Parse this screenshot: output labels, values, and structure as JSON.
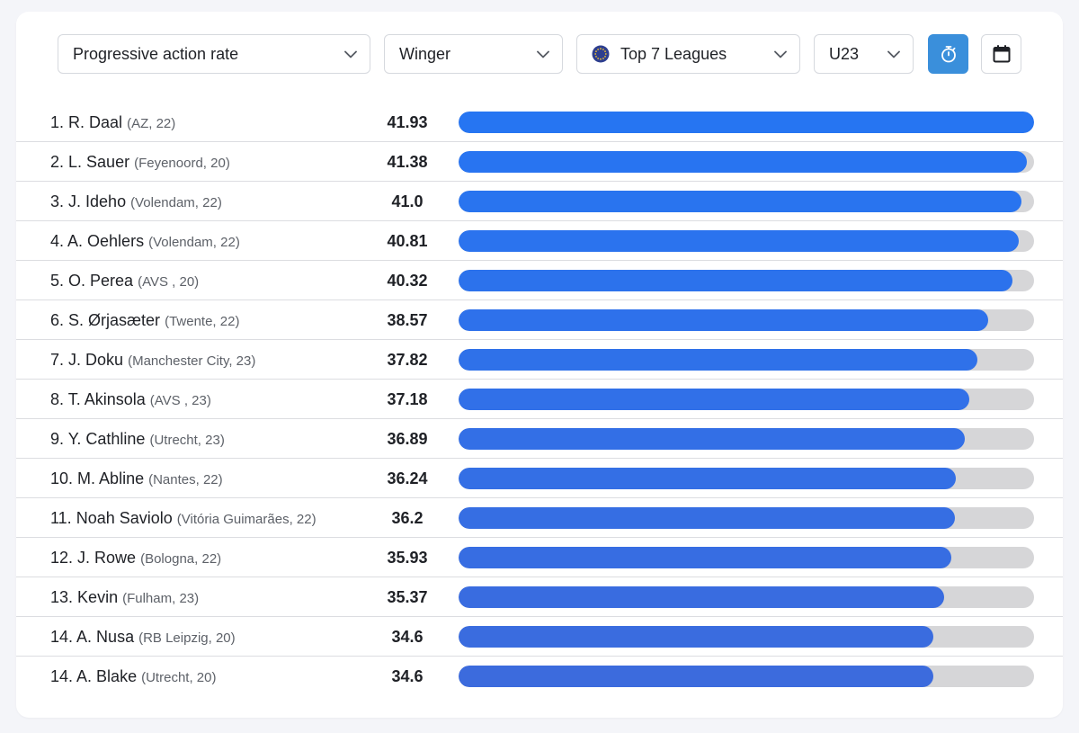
{
  "filters": {
    "metric": {
      "label": "Progressive action rate"
    },
    "position": {
      "label": "Winger"
    },
    "competition": {
      "label": "Top 7 Leagues"
    },
    "age": {
      "label": "U23"
    }
  },
  "buttons": {
    "timer": {
      "icon": "stopwatch-icon",
      "active": true
    },
    "calendar": {
      "icon": "calendar-icon",
      "active": false
    }
  },
  "colors": {
    "accent": "#3a8fdb",
    "bar_fill_top": "#2675f2",
    "bar_fill_bottom": "#3c6bdd",
    "bar_track": "#d6d6d8"
  },
  "scale_max": 41.93,
  "rankings": [
    {
      "rank": "1.",
      "name": "R. Daal",
      "club": "(AZ, 22)",
      "value": "41.93",
      "bar_pct": 100
    },
    {
      "rank": "2.",
      "name": "L. Sauer",
      "club": "(Feyenoord, 20)",
      "value": "41.38",
      "bar_pct": 98.7
    },
    {
      "rank": "3.",
      "name": "J. Ideho",
      "club": "(Volendam, 22)",
      "value": "41.0",
      "bar_pct": 97.8
    },
    {
      "rank": "4.",
      "name": "A. Oehlers",
      "club": "(Volendam, 22)",
      "value": "40.81",
      "bar_pct": 97.3
    },
    {
      "rank": "5.",
      "name": "O. Perea",
      "club": "(AVS , 20)",
      "value": "40.32",
      "bar_pct": 96.2
    },
    {
      "rank": "6.",
      "name": "S. Ørjasæter",
      "club": "(Twente, 22)",
      "value": "38.57",
      "bar_pct": 92.0
    },
    {
      "rank": "7.",
      "name": "J. Doku",
      "club": "(Manchester City, 23)",
      "value": "37.82",
      "bar_pct": 90.2
    },
    {
      "rank": "8.",
      "name": "T. Akinsola",
      "club": "(AVS , 23)",
      "value": "37.18",
      "bar_pct": 88.7
    },
    {
      "rank": "9.",
      "name": "Y. Cathline",
      "club": "(Utrecht, 23)",
      "value": "36.89",
      "bar_pct": 88.0
    },
    {
      "rank": "10.",
      "name": "M. Abline",
      "club": "(Nantes, 22)",
      "value": "36.24",
      "bar_pct": 86.4
    },
    {
      "rank": "11.",
      "name": "Noah Saviolo",
      "club": "(Vitória Guimarães, 22)",
      "value": "36.2",
      "bar_pct": 86.3
    },
    {
      "rank": "12.",
      "name": "J. Rowe",
      "club": "(Bologna, 22)",
      "value": "35.93",
      "bar_pct": 85.7
    },
    {
      "rank": "13.",
      "name": "Kevin",
      "club": "(Fulham, 23)",
      "value": "35.37",
      "bar_pct": 84.4
    },
    {
      "rank": "14.",
      "name": "A. Nusa",
      "club": "(RB Leipzig, 20)",
      "value": "34.6",
      "bar_pct": 82.5
    },
    {
      "rank": "14.",
      "name": "A. Blake",
      "club": "(Utrecht, 20)",
      "value": "34.6",
      "bar_pct": 82.5
    }
  ]
}
